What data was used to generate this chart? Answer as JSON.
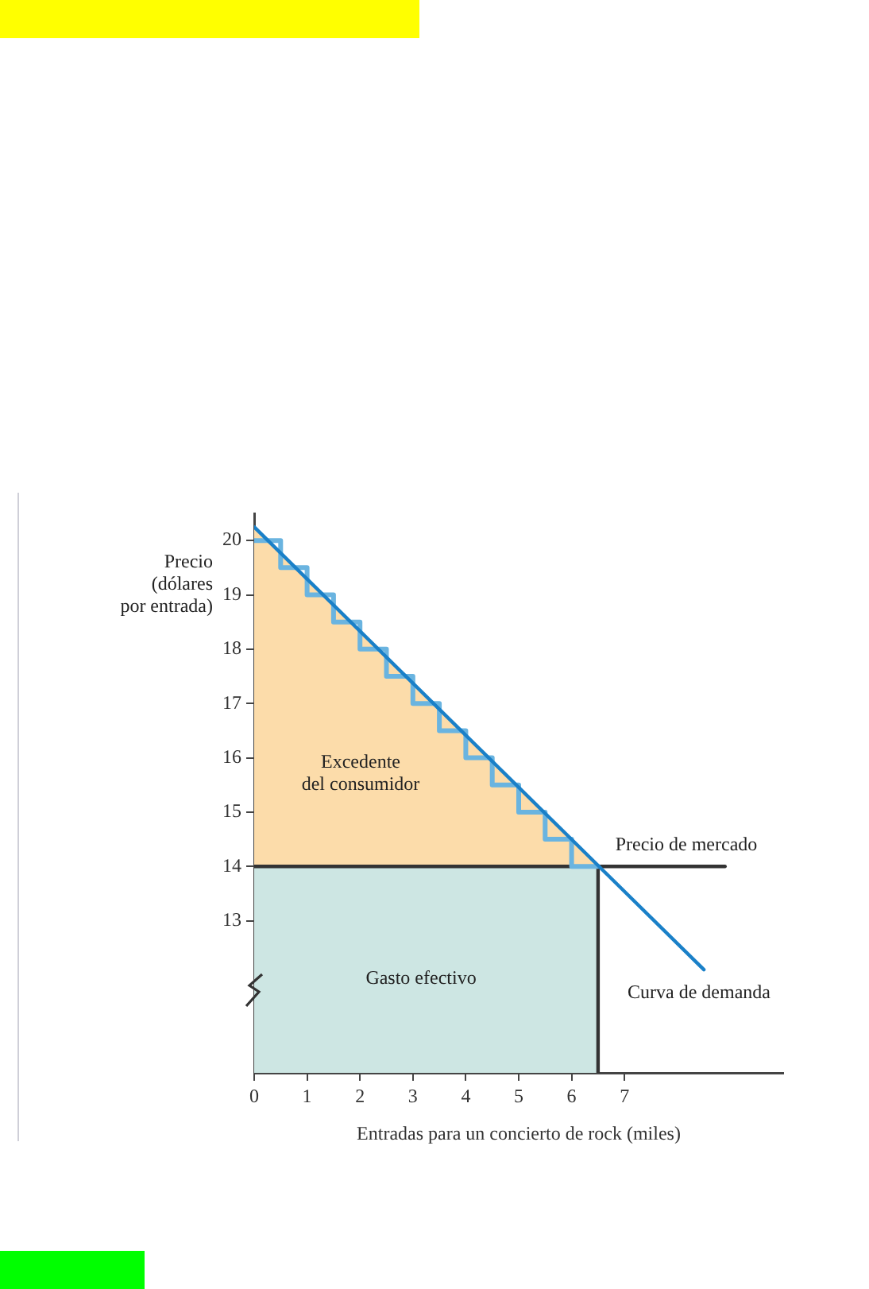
{
  "chart_data": {
    "type": "line",
    "xlabel": "Entradas para un concierto de rock (miles)",
    "ylabel": "Precio\n(dólares\npor entrada)",
    "xlim": [
      0,
      10
    ],
    "xticks": [
      0,
      1,
      2,
      3,
      4,
      5,
      6,
      7
    ],
    "ylim": [
      10.2,
      20.5
    ],
    "yticks": [
      13,
      14,
      15,
      16,
      17,
      18,
      19,
      20
    ],
    "grid": false,
    "legend": false,
    "marker": "none",
    "series": [
      {
        "type": "area",
        "color": "#fcdcaa",
        "x": [
          0,
          6.5
        ],
        "values": [
          20.25,
          14
        ]
      },
      {
        "type": "area",
        "color": "#cde6e3",
        "x": [
          0,
          6.5
        ],
        "values": [
          14,
          14
        ]
      },
      {
        "type": "line",
        "color": "#333333",
        "x": [
          0,
          8.9
        ],
        "values": [
          14,
          14
        ]
      },
      {
        "type": "line",
        "color": "#333333",
        "x": [
          6.5,
          6.5
        ],
        "values": [
          14,
          10.2
        ]
      },
      {
        "type": "step",
        "color": "#6ab4e0",
        "x": [
          0,
          0.5,
          1,
          1.5,
          2,
          2.5,
          3,
          3.5,
          4,
          4.5,
          5,
          5.5,
          6,
          6.5
        ],
        "values": [
          20,
          19.5,
          19,
          18.5,
          18,
          17.5,
          17,
          16.5,
          16,
          15.5,
          15,
          14.5,
          14,
          14
        ]
      },
      {
        "type": "line",
        "color": "#1a80c8",
        "x": [
          0,
          8.5
        ],
        "values": [
          20.25,
          12.1
        ]
      }
    ],
    "annotations": [
      "Excedente\ndel consumidor",
      "Gasto efectivo",
      "Precio de mercado",
      "Curva de demanda"
    ]
  }
}
